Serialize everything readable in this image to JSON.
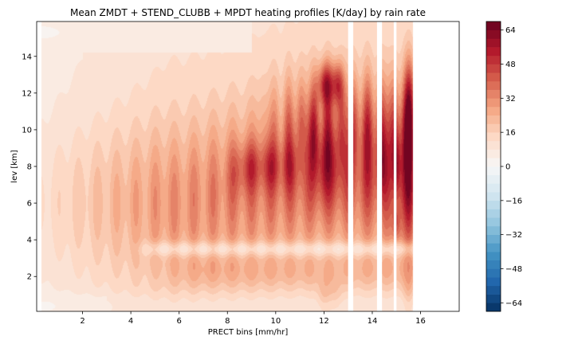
{
  "chart_data": {
    "type": "heatmap",
    "title": "Mean ZMDT + STEND_CLUBB + MPDT heating profiles [K/day] by rain rate",
    "xlabel": "PRECT bins [mm/hr]",
    "ylabel": "lev [km]",
    "xlim": [
      0.1,
      17.6
    ],
    "ylim": [
      0.1,
      15.9
    ],
    "x_ticks": [
      2,
      4,
      6,
      8,
      10,
      12,
      14,
      16
    ],
    "y_ticks": [
      2,
      4,
      6,
      8,
      10,
      12,
      14
    ],
    "colorbar": {
      "colormap": "RdBu_r",
      "vmin": -68,
      "vmax": 68,
      "level_step": 4,
      "ticks": [
        -64,
        -48,
        -32,
        -16,
        0,
        16,
        32,
        48,
        64
      ]
    },
    "data_extent_x": [
      0.3,
      16.4
    ],
    "missing_x_bins": [
      [
        13.0,
        13.2
      ],
      [
        14.2,
        14.4
      ],
      [
        14.9,
        15.0
      ],
      [
        15.7,
        17.6
      ]
    ],
    "summary": {
      "peak_values_k_per_day": [
        {
          "x": 12.0,
          "y": 12.5,
          "value": 60
        },
        {
          "x": 12.5,
          "y": 12.5,
          "value": 56
        },
        {
          "x": 15.5,
          "y": 12.0,
          "value": 52
        },
        {
          "x": 15.0,
          "y": 8.0,
          "value": 48
        },
        {
          "x": 9.0,
          "y": 8.0,
          "value": 36
        },
        {
          "x": 9.8,
          "y": 8.0,
          "value": 36
        }
      ],
      "negative_region": {
        "x": [
          4,
          16
        ],
        "y": [
          3.2,
          3.8
        ],
        "value": -8
      },
      "upper_left_slight_negative": {
        "x": [
          0.3,
          2.0
        ],
        "y": [
          14.4,
          15.9
        ],
        "value": -4
      }
    }
  }
}
